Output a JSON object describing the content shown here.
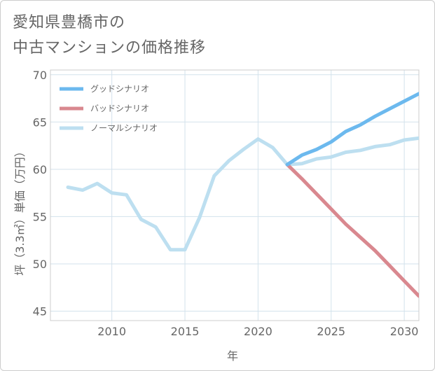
{
  "title_lines": [
    "愛知県豊橋市の",
    "中古マンションの価格推移"
  ],
  "colors": {
    "good": "#6cb9ee",
    "bad": "#d9888f",
    "normal": "#bddff0",
    "grid": "#d3e2ec",
    "text": "#666666"
  },
  "chart_data": {
    "type": "line",
    "title": "愛知県豊橋市の中古マンションの価格推移",
    "xlabel": "年",
    "ylabel": "坪（3.3㎡）単価（万円）",
    "xlim": [
      2005.8,
      2031
    ],
    "ylim": [
      44,
      70.5
    ],
    "x_ticks": [
      2010,
      2015,
      2020,
      2025,
      2030
    ],
    "y_ticks": [
      45,
      50,
      55,
      60,
      65,
      70
    ],
    "grid": true,
    "legend_position": "top-left",
    "series": [
      {
        "name": "グッドシナリオ",
        "color_key": "good",
        "x": [
          2022,
          2023,
          2024,
          2025,
          2026,
          2027,
          2028,
          2029,
          2030,
          2031
        ],
        "values": [
          60.5,
          61.5,
          62.1,
          62.9,
          64.0,
          64.7,
          65.6,
          66.4,
          67.2,
          68.0
        ]
      },
      {
        "name": "バッドシナリオ",
        "color_key": "bad",
        "x": [
          2022,
          2023,
          2024,
          2025,
          2026,
          2027,
          2028,
          2029,
          2030,
          2031
        ],
        "values": [
          60.5,
          59.0,
          57.4,
          55.8,
          54.2,
          52.8,
          51.4,
          49.8,
          48.2,
          46.6
        ]
      },
      {
        "name": "ノーマルシナリオ",
        "color_key": "normal",
        "x": [
          2007,
          2008,
          2009,
          2010,
          2011,
          2012,
          2013,
          2014,
          2015,
          2016,
          2017,
          2018,
          2019,
          2020,
          2021,
          2022,
          2023,
          2024,
          2025,
          2026,
          2027,
          2028,
          2029,
          2030,
          2031
        ],
        "values": [
          58.1,
          57.8,
          58.5,
          57.5,
          57.3,
          54.7,
          53.9,
          51.5,
          51.5,
          54.9,
          59.3,
          60.9,
          62.1,
          63.2,
          62.3,
          60.5,
          60.6,
          61.1,
          61.3,
          61.8,
          62.0,
          62.4,
          62.6,
          63.1,
          63.3
        ]
      }
    ]
  }
}
